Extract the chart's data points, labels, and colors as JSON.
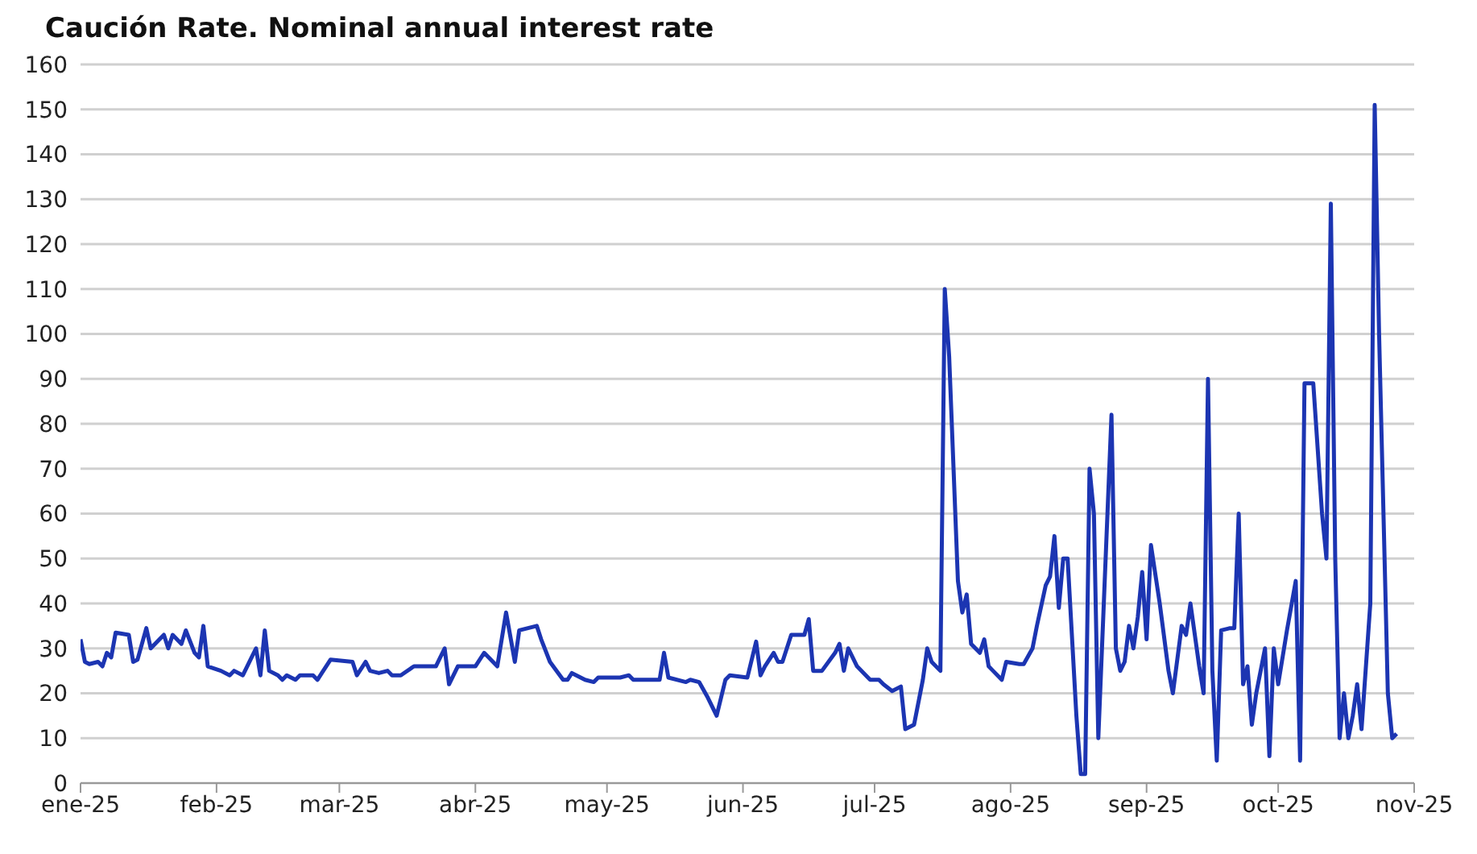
{
  "chart_data": {
    "type": "line",
    "title": "Caución Rate. Nominal annual interest rate",
    "x": [
      "2025-01-01",
      "2025-01-02",
      "2025-01-03",
      "2025-01-05",
      "2025-01-06",
      "2025-01-07",
      "2025-01-08",
      "2025-01-09",
      "2025-01-12",
      "2025-01-13",
      "2025-01-14",
      "2025-01-16",
      "2025-01-17",
      "2025-01-19",
      "2025-01-20",
      "2025-01-21",
      "2025-01-22",
      "2025-01-24",
      "2025-01-25",
      "2025-01-27",
      "2025-01-28",
      "2025-01-29",
      "2025-01-30",
      "2025-02-02",
      "2025-02-04",
      "2025-02-05",
      "2025-02-07",
      "2025-02-09",
      "2025-02-10",
      "2025-02-11",
      "2025-02-12",
      "2025-02-13",
      "2025-02-15",
      "2025-02-16",
      "2025-02-17",
      "2025-02-19",
      "2025-02-20",
      "2025-02-23",
      "2025-02-24",
      "2025-02-25",
      "2025-02-27",
      "2025-03-04",
      "2025-03-05",
      "2025-03-07",
      "2025-03-08",
      "2025-03-10",
      "2025-03-12",
      "2025-03-13",
      "2025-03-15",
      "2025-03-18",
      "2025-03-23",
      "2025-03-25",
      "2025-03-26",
      "2025-03-28",
      "2025-04-01",
      "2025-04-03",
      "2025-04-06",
      "2025-04-08",
      "2025-04-10",
      "2025-04-11",
      "2025-04-15",
      "2025-04-16",
      "2025-04-18",
      "2025-04-21",
      "2025-04-22",
      "2025-04-23",
      "2025-04-26",
      "2025-04-28",
      "2025-04-29",
      "2025-05-04",
      "2025-05-06",
      "2025-05-07",
      "2025-05-13",
      "2025-05-14",
      "2025-05-15",
      "2025-05-19",
      "2025-05-20",
      "2025-05-22",
      "2025-05-24",
      "2025-05-26",
      "2025-05-28",
      "2025-05-29",
      "2025-06-02",
      "2025-06-04",
      "2025-06-05",
      "2025-06-06",
      "2025-06-08",
      "2025-06-09",
      "2025-06-10",
      "2025-06-12",
      "2025-06-15",
      "2025-06-16",
      "2025-06-17",
      "2025-06-19",
      "2025-06-22",
      "2025-06-23",
      "2025-06-24",
      "2025-06-25",
      "2025-06-27",
      "2025-06-29",
      "2025-06-30",
      "2025-07-02",
      "2025-07-03",
      "2025-07-05",
      "2025-07-07",
      "2025-07-08",
      "2025-07-10",
      "2025-07-12",
      "2025-07-13",
      "2025-07-14",
      "2025-07-16",
      "2025-07-17",
      "2025-07-18",
      "2025-07-20",
      "2025-07-21",
      "2025-07-22",
      "2025-07-23",
      "2025-07-25",
      "2025-07-26",
      "2025-07-27",
      "2025-07-28",
      "2025-07-30",
      "2025-07-31",
      "2025-08-03",
      "2025-08-04",
      "2025-08-06",
      "2025-08-07",
      "2025-08-09",
      "2025-08-10",
      "2025-08-11",
      "2025-08-12",
      "2025-08-13",
      "2025-08-14",
      "2025-08-16",
      "2025-08-17",
      "2025-08-18",
      "2025-08-19",
      "2025-08-20",
      "2025-08-21",
      "2025-08-24",
      "2025-08-25",
      "2025-08-26",
      "2025-08-27",
      "2025-08-28",
      "2025-08-29",
      "2025-08-30",
      "2025-08-31",
      "2025-09-01",
      "2025-09-02",
      "2025-09-04",
      "2025-09-06",
      "2025-09-07",
      "2025-09-09",
      "2025-09-10",
      "2025-09-11",
      "2025-09-13",
      "2025-09-14",
      "2025-09-15",
      "2025-09-16",
      "2025-09-17",
      "2025-09-18",
      "2025-09-20",
      "2025-09-21",
      "2025-09-22",
      "2025-09-23",
      "2025-09-24",
      "2025-09-25",
      "2025-09-26",
      "2025-09-28",
      "2025-09-29",
      "2025-09-30",
      "2025-10-01",
      "2025-10-03",
      "2025-10-05",
      "2025-10-06",
      "2025-10-07",
      "2025-10-09",
      "2025-10-11",
      "2025-10-12",
      "2025-10-13",
      "2025-10-14",
      "2025-10-15",
      "2025-10-16",
      "2025-10-17",
      "2025-10-18",
      "2025-10-19",
      "2025-10-20",
      "2025-10-22",
      "2025-10-23",
      "2025-10-24",
      "2025-10-26",
      "2025-10-27",
      "2025-10-28"
    ],
    "series": [
      {
        "color": "#1c35b2",
        "values": [
          32,
          27,
          26.5,
          27,
          26,
          29,
          28,
          33.5,
          33,
          27,
          27.5,
          34.5,
          30,
          32,
          33,
          30,
          33,
          31,
          34,
          29,
          28,
          35,
          26,
          25,
          24,
          25,
          24,
          28,
          30,
          24,
          34,
          25,
          24,
          23,
          24,
          23,
          24,
          24,
          23,
          24.5,
          27.5,
          27,
          24,
          27,
          25,
          24.5,
          25,
          24,
          24,
          26,
          26,
          30,
          22,
          26,
          26,
          29,
          26,
          38,
          27,
          34,
          35,
          32,
          27,
          23,
          23,
          24.5,
          23,
          22.5,
          23.5,
          23.5,
          24,
          23,
          23,
          29,
          23.5,
          22.5,
          23,
          22.5,
          19,
          15,
          23,
          24,
          23.5,
          31.5,
          24,
          26,
          29,
          27,
          27,
          33,
          33,
          36.5,
          25,
          25,
          29,
          31,
          25,
          30,
          26,
          24,
          23,
          23,
          22,
          20.5,
          21.5,
          12,
          13,
          23,
          30,
          27,
          25,
          110,
          95,
          45,
          38,
          42,
          31,
          29,
          32,
          26,
          25,
          23,
          27,
          26.5,
          26.5,
          30,
          35,
          44,
          46,
          55,
          39,
          50,
          50,
          15,
          2,
          2,
          70,
          60,
          10,
          82,
          30,
          25,
          27,
          35,
          30,
          37,
          47,
          32,
          53,
          40,
          25,
          20,
          35,
          33,
          40,
          26,
          20,
          90,
          25,
          5,
          34,
          34.5,
          34.5,
          60,
          22,
          26,
          13,
          20,
          30,
          6,
          30,
          22,
          34,
          45,
          5,
          89,
          89,
          60,
          50,
          129,
          50,
          10,
          20,
          10,
          15,
          22,
          12,
          40,
          151,
          100,
          20,
          10,
          11
        ]
      }
    ],
    "xlim": [
      "2025-01-01",
      "2025-11-01"
    ],
    "xticks": [
      {
        "value": "2025-01-01",
        "label": "ene-25"
      },
      {
        "value": "2025-02-01",
        "label": "feb-25"
      },
      {
        "value": "2025-03-01",
        "label": "mar-25"
      },
      {
        "value": "2025-04-01",
        "label": "abr-25"
      },
      {
        "value": "2025-05-01",
        "label": "may-25"
      },
      {
        "value": "2025-06-01",
        "label": "jun-25"
      },
      {
        "value": "2025-07-01",
        "label": "jul-25"
      },
      {
        "value": "2025-08-01",
        "label": "ago-25"
      },
      {
        "value": "2025-09-01",
        "label": "sep-25"
      },
      {
        "value": "2025-10-01",
        "label": "oct-25"
      },
      {
        "value": "2025-11-01",
        "label": "nov-25"
      }
    ],
    "ylim": [
      0,
      160
    ],
    "yticks": [
      0,
      10,
      20,
      30,
      40,
      50,
      60,
      70,
      80,
      90,
      100,
      110,
      120,
      130,
      140,
      150,
      160
    ],
    "grid": "y",
    "marker": "none",
    "line_style": "solid",
    "legend": false
  }
}
